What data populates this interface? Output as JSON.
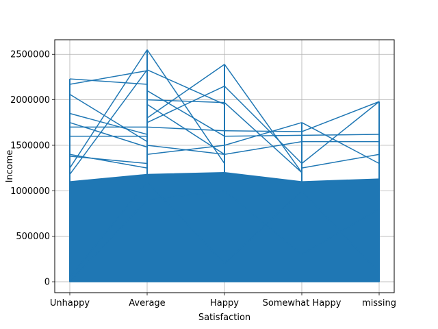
{
  "chart_data": {
    "type": "line",
    "title": "",
    "xlabel": "Satisfaction",
    "ylabel": "Income",
    "categories": [
      "Unhappy",
      "Average",
      "Happy",
      "Somewhat Happy",
      "missing"
    ],
    "y_ticks": [
      0,
      500000,
      1000000,
      1500000,
      2000000,
      2500000
    ],
    "y_tick_labels": [
      "0",
      "500000",
      "1000000",
      "1500000",
      "2000000",
      "2500000"
    ],
    "ylim": [
      -120000,
      2660000
    ],
    "grid": true,
    "line_color": "#1f77b4",
    "dense_fill_top": [
      1100000,
      1180000,
      1200000,
      1100000,
      1130000
    ],
    "outlier_lines": [
      [
        2230000,
        2170000
      ],
      [
        2170000,
        2320000
      ],
      [
        2060000,
        1540000
      ],
      [
        1850000,
        1620000
      ],
      [
        1750000,
        1480000
      ],
      [
        1700000,
        1700000
      ],
      [
        1600000,
        1600000
      ],
      [
        1400000,
        1250000
      ],
      [
        1380000,
        1300000
      ],
      [
        1250000,
        2550000
      ],
      [
        1180000,
        2330000
      ],
      [
        2550000,
        1300000
      ],
      [
        2330000,
        1950000
      ],
      [
        2100000,
        1600000
      ],
      [
        2000000,
        1970000
      ],
      [
        1950000,
        1400000
      ],
      [
        1800000,
        2390000
      ],
      [
        1750000,
        2150000
      ],
      [
        1700000,
        1660000
      ],
      [
        1500000,
        1400000
      ],
      [
        1400000,
        1500000
      ],
      [
        2390000,
        1200000
      ],
      [
        2150000,
        1300000
      ],
      [
        1970000,
        1200000
      ],
      [
        1660000,
        1650000
      ],
      [
        1600000,
        1610000
      ],
      [
        1500000,
        1750000
      ],
      [
        1400000,
        1540000
      ],
      [
        1750000,
        1300000
      ],
      [
        1650000,
        1980000
      ],
      [
        1610000,
        1620000
      ],
      [
        1540000,
        1540000
      ],
      [
        1300000,
        1980000
      ],
      [
        1250000,
        1400000
      ]
    ]
  }
}
